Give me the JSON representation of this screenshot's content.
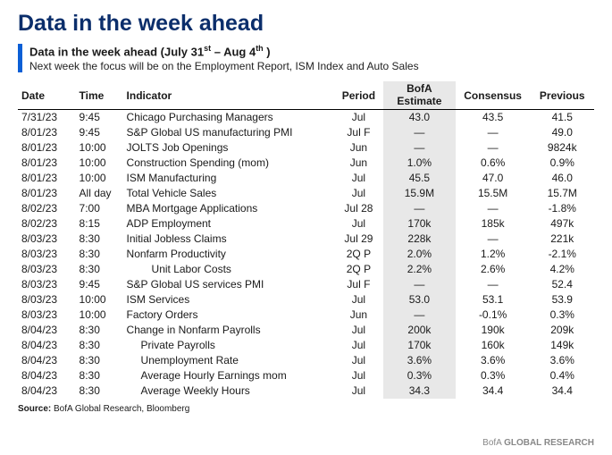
{
  "title": "Data in the week ahead",
  "subtitle_prefix": "Data in the week ahead (July 31",
  "subtitle_sup1": "st",
  "subtitle_mid": " – Aug 4",
  "subtitle_sup2": "th",
  "subtitle_suffix": " )",
  "description": "Next week the focus will be on the Employment Report, ISM Index and Auto Sales",
  "columns": {
    "date": "Date",
    "time": "Time",
    "indicator": "Indicator",
    "period": "Period",
    "estimate_line1": "BofA",
    "estimate_line2": "Estimate",
    "consensus": "Consensus",
    "previous": "Previous"
  },
  "rows": [
    {
      "date": "7/31/23",
      "time": "9:45",
      "ind": "Chicago Purchasing Managers",
      "period": "Jul",
      "est": "43.0",
      "cons": "43.5",
      "prev": "41.5",
      "indent": 0
    },
    {
      "date": "8/01/23",
      "time": "9:45",
      "ind": "S&P Global US manufacturing PMI",
      "period": "Jul F",
      "est": "—",
      "cons": "—",
      "prev": "49.0",
      "indent": 0
    },
    {
      "date": "8/01/23",
      "time": "10:00",
      "ind": "JOLTS Job Openings",
      "period": "Jun",
      "est": "—",
      "cons": "—",
      "prev": "9824k",
      "indent": 0
    },
    {
      "date": "8/01/23",
      "time": "10:00",
      "ind": "Construction Spending (mom)",
      "period": "Jun",
      "est": "1.0%",
      "cons": "0.6%",
      "prev": "0.9%",
      "indent": 0
    },
    {
      "date": "8/01/23",
      "time": "10:00",
      "ind": "ISM Manufacturing",
      "period": "Jul",
      "est": "45.5",
      "cons": "47.0",
      "prev": "46.0",
      "indent": 0
    },
    {
      "date": "8/01/23",
      "time": "All day",
      "ind": "Total Vehicle Sales",
      "period": "Jul",
      "est": "15.9M",
      "cons": "15.5M",
      "prev": "15.7M",
      "indent": 0
    },
    {
      "date": "8/02/23",
      "time": "7:00",
      "ind": "MBA Mortgage Applications",
      "period": "Jul 28",
      "est": "—",
      "cons": "—",
      "prev": "-1.8%",
      "indent": 0
    },
    {
      "date": "8/02/23",
      "time": "8:15",
      "ind": "ADP Employment",
      "period": "Jul",
      "est": "170k",
      "cons": "185k",
      "prev": "497k",
      "indent": 0
    },
    {
      "date": "8/03/23",
      "time": "8:30",
      "ind": "Initial Jobless Claims",
      "period": "Jul 29",
      "est": "228k",
      "cons": "—",
      "prev": "221k",
      "indent": 0
    },
    {
      "date": "8/03/23",
      "time": "8:30",
      "ind": "Nonfarm Productivity",
      "period": "2Q P",
      "est": "2.0%",
      "cons": "1.2%",
      "prev": "-2.1%",
      "indent": 0
    },
    {
      "date": "8/03/23",
      "time": "8:30",
      "ind": "Unit Labor Costs",
      "period": "2Q P",
      "est": "2.2%",
      "cons": "2.6%",
      "prev": "4.2%",
      "indent": 2
    },
    {
      "date": "8/03/23",
      "time": "9:45",
      "ind": "S&P Global US services PMI",
      "period": "Jul F",
      "est": "—",
      "cons": "—",
      "prev": "52.4",
      "indent": 0
    },
    {
      "date": "8/03/23",
      "time": "10:00",
      "ind": "ISM Services",
      "period": "Jul",
      "est": "53.0",
      "cons": "53.1",
      "prev": "53.9",
      "indent": 0
    },
    {
      "date": "8/03/23",
      "time": "10:00",
      "ind": "Factory Orders",
      "period": "Jun",
      "est": "—",
      "cons": "-0.1%",
      "prev": "0.3%",
      "indent": 0
    },
    {
      "date": "8/04/23",
      "time": "8:30",
      "ind": "Change in Nonfarm Payrolls",
      "period": "Jul",
      "est": "200k",
      "cons": "190k",
      "prev": "209k",
      "indent": 0
    },
    {
      "date": "8/04/23",
      "time": "8:30",
      "ind": "Private Payrolls",
      "period": "Jul",
      "est": "170k",
      "cons": "160k",
      "prev": "149k",
      "indent": 1
    },
    {
      "date": "8/04/23",
      "time": "8:30",
      "ind": "Unemployment Rate",
      "period": "Jul",
      "est": "3.6%",
      "cons": "3.6%",
      "prev": "3.6%",
      "indent": 1
    },
    {
      "date": "8/04/23",
      "time": "8:30",
      "ind": "Average Hourly Earnings mom",
      "period": "Jul",
      "est": "0.3%",
      "cons": "0.3%",
      "prev": "0.4%",
      "indent": 1
    },
    {
      "date": "8/04/23",
      "time": "8:30",
      "ind": "Average Weekly Hours",
      "period": "Jul",
      "est": "34.3",
      "cons": "34.4",
      "prev": "34.4",
      "indent": 1
    }
  ],
  "source_label": "Source:",
  "source_text": "  BofA Global Research, Bloomberg",
  "footer_brand_prefix": "BofA ",
  "footer_brand_bold": "GLOBAL RESEARCH",
  "colors": {
    "title": "#0b2e6b",
    "accent_bar": "#0b5fd6",
    "est_bg": "#e8e8e8",
    "text": "#1a1a1a",
    "footer": "#888888"
  }
}
